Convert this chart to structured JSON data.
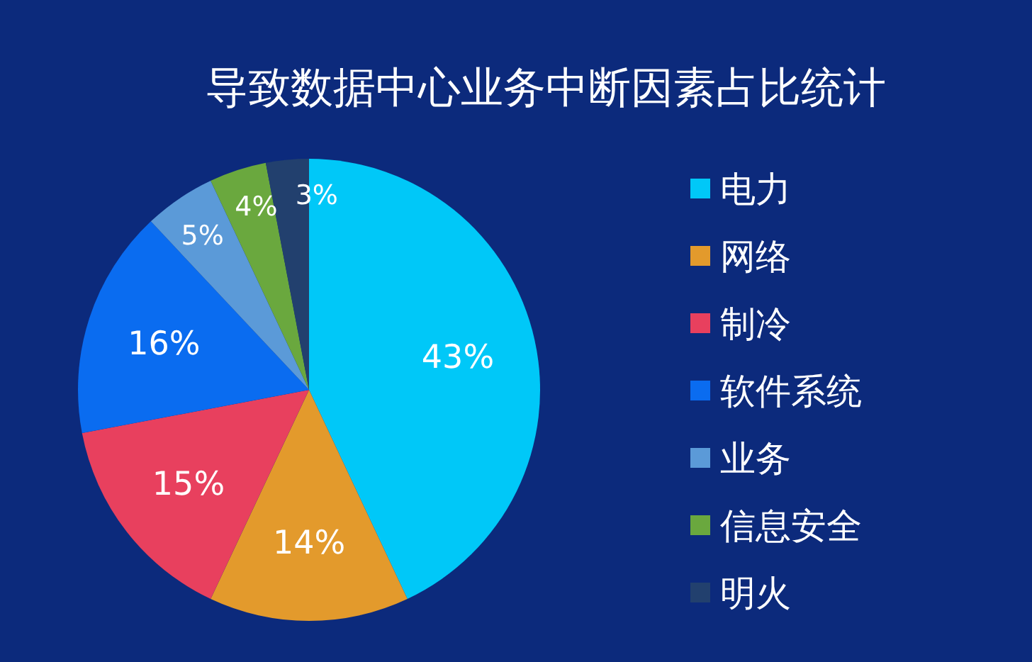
{
  "chart_data": {
    "type": "pie",
    "title": "导致数据中心业务中断因素占比统计",
    "categories": [
      "电力",
      "网络",
      "制冷",
      "软件系统",
      "业务",
      "信息安全",
      "明火"
    ],
    "values": [
      43,
      14,
      15,
      16,
      5,
      4,
      3
    ],
    "colors": [
      "#00c8f8",
      "#e39a2c",
      "#e8405e",
      "#0a6cf0",
      "#5b9ad8",
      "#6aa83e",
      "#22406e"
    ],
    "value_labels": [
      "43%",
      "14%",
      "15%",
      "16%",
      "5%",
      "4%",
      "3%"
    ],
    "legend": "right"
  }
}
